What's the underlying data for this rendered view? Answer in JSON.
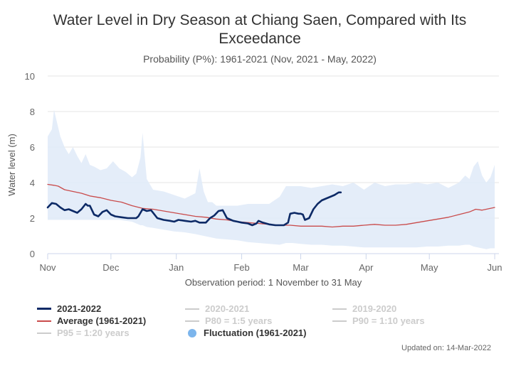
{
  "chart_data": {
    "type": "area",
    "title": "Water Level in Dry Season at Chiang Saen, Compared with Its Exceedance",
    "subtitle": "Probability (P%): 1961-2021 (Nov, 2021 - May, 2022)",
    "xlabel": "Observation period: 1 November to 31 May",
    "ylabel": "Water level (m)",
    "ylim": [
      0,
      10
    ],
    "yticks": [
      0,
      2,
      4,
      6,
      8,
      10
    ],
    "xlim": [
      0,
      213
    ],
    "xticks": [
      {
        "label": "Nov",
        "day": 0
      },
      {
        "label": "Dec",
        "day": 30
      },
      {
        "label": "Jan",
        "day": 61
      },
      {
        "label": "Feb",
        "day": 92
      },
      {
        "label": "Mar",
        "day": 120
      },
      {
        "label": "Apr",
        "day": 151
      },
      {
        "label": "May",
        "day": 181
      },
      {
        "label": "Jun",
        "day": 212
      }
    ],
    "grid": true,
    "legend_position": "bottom",
    "series": [
      {
        "name": "Fluctuation (1961-2021)",
        "kind": "band",
        "color": "#7cb5ec",
        "x": [
          0,
          2,
          3,
          4,
          6,
          8,
          10,
          12,
          14,
          16,
          18,
          20,
          22,
          25,
          28,
          31,
          34,
          37,
          40,
          42,
          44,
          45,
          47,
          50,
          55,
          60,
          65,
          70,
          72,
          74,
          76,
          78,
          80,
          85,
          90,
          95,
          100,
          105,
          110,
          113,
          116,
          120,
          125,
          130,
          135,
          140,
          145,
          150,
          155,
          160,
          165,
          170,
          175,
          180,
          185,
          190,
          195,
          198,
          200,
          202,
          204,
          206,
          208,
          210,
          212
        ],
        "high": [
          6.6,
          7.0,
          8.1,
          7.6,
          6.6,
          6.0,
          5.6,
          6.0,
          5.5,
          5.1,
          5.6,
          5.0,
          4.9,
          4.7,
          4.8,
          5.2,
          4.8,
          4.6,
          4.3,
          4.5,
          5.4,
          6.8,
          4.2,
          3.6,
          3.5,
          3.3,
          3.1,
          3.4,
          4.8,
          3.5,
          2.9,
          2.9,
          2.7,
          2.7,
          2.7,
          2.8,
          2.8,
          2.8,
          3.2,
          3.8,
          3.8,
          3.8,
          3.7,
          3.8,
          3.9,
          3.8,
          4.0,
          3.6,
          4.0,
          3.8,
          3.9,
          3.9,
          4.0,
          3.9,
          4.0,
          3.7,
          4.0,
          4.4,
          4.2,
          4.9,
          5.2,
          4.4,
          4.0,
          4.3,
          5.0
        ],
        "low": [
          1.9,
          1.9,
          1.9,
          1.9,
          1.9,
          1.9,
          1.9,
          1.9,
          1.9,
          1.9,
          1.9,
          1.9,
          1.9,
          1.9,
          1.9,
          1.9,
          1.9,
          1.85,
          1.8,
          1.7,
          1.6,
          1.6,
          1.5,
          1.45,
          1.35,
          1.25,
          1.2,
          1.1,
          1.05,
          1.0,
          0.95,
          0.9,
          0.85,
          0.8,
          0.75,
          0.65,
          0.6,
          0.55,
          0.5,
          0.6,
          0.6,
          0.55,
          0.5,
          0.5,
          0.45,
          0.45,
          0.4,
          0.35,
          0.35,
          0.35,
          0.35,
          0.35,
          0.35,
          0.4,
          0.4,
          0.45,
          0.45,
          0.5,
          0.5,
          0.4,
          0.35,
          0.3,
          0.25,
          0.3,
          0.3
        ]
      },
      {
        "name": "Average (1961-2021)",
        "kind": "line",
        "color": "#c94b4b",
        "x": [
          0,
          3,
          5,
          8,
          12,
          16,
          20,
          25,
          30,
          35,
          40,
          45,
          50,
          55,
          60,
          65,
          70,
          75,
          80,
          85,
          90,
          95,
          100,
          105,
          110,
          115,
          120,
          125,
          130,
          135,
          140,
          145,
          150,
          155,
          160,
          165,
          170,
          175,
          180,
          185,
          190,
          195,
          200,
          203,
          206,
          210,
          212
        ],
        "values": [
          3.9,
          3.85,
          3.8,
          3.6,
          3.5,
          3.4,
          3.25,
          3.15,
          3.0,
          2.9,
          2.7,
          2.55,
          2.5,
          2.4,
          2.3,
          2.2,
          2.1,
          2.05,
          1.95,
          1.9,
          1.8,
          1.75,
          1.7,
          1.65,
          1.6,
          1.6,
          1.55,
          1.55,
          1.55,
          1.5,
          1.55,
          1.55,
          1.6,
          1.65,
          1.6,
          1.6,
          1.65,
          1.75,
          1.85,
          1.95,
          2.05,
          2.2,
          2.35,
          2.5,
          2.45,
          2.55,
          2.6
        ]
      },
      {
        "name": "2021-2022",
        "kind": "line",
        "color": "#0d2a66",
        "x": [
          0,
          2,
          4,
          6,
          8,
          10,
          12,
          14,
          16,
          18,
          19,
          20,
          22,
          24,
          26,
          28,
          30,
          32,
          35,
          38,
          40,
          42,
          43,
          45,
          47,
          49,
          52,
          55,
          58,
          60,
          62,
          65,
          68,
          70,
          72,
          75,
          77,
          79,
          81,
          83,
          85,
          88,
          90,
          92,
          95,
          97,
          99,
          100,
          102,
          105,
          108,
          110,
          112,
          114,
          115,
          117,
          119,
          120,
          121,
          122,
          124,
          126,
          128,
          130,
          132,
          134,
          136,
          138,
          139
        ],
        "values": [
          2.6,
          2.85,
          2.8,
          2.6,
          2.45,
          2.5,
          2.4,
          2.3,
          2.5,
          2.8,
          2.7,
          2.7,
          2.2,
          2.1,
          2.35,
          2.45,
          2.2,
          2.1,
          2.05,
          2.0,
          2.0,
          2.0,
          2.1,
          2.5,
          2.4,
          2.45,
          2.0,
          1.9,
          1.85,
          1.8,
          1.9,
          1.85,
          1.8,
          1.85,
          1.75,
          1.75,
          2.0,
          2.15,
          2.4,
          2.45,
          2.0,
          1.85,
          1.8,
          1.75,
          1.7,
          1.6,
          1.7,
          1.85,
          1.75,
          1.65,
          1.6,
          1.6,
          1.6,
          1.75,
          2.25,
          2.3,
          2.25,
          2.25,
          2.2,
          1.9,
          2.0,
          2.5,
          2.8,
          3.0,
          3.1,
          3.2,
          3.3,
          3.45,
          3.45
        ]
      }
    ],
    "legend": [
      {
        "name": "2021-2022",
        "symbol": "line",
        "color": "#0d2a66",
        "active": true
      },
      {
        "name": "2020-2021",
        "symbol": "line",
        "color": "#cccccc",
        "active": false
      },
      {
        "name": "2019-2020",
        "symbol": "line",
        "color": "#cccccc",
        "active": false
      },
      {
        "name": "Average (1961-2021)",
        "symbol": "line",
        "color": "#c94b4b",
        "active": true
      },
      {
        "name": "P80 = 1:5 years",
        "symbol": "line",
        "color": "#cccccc",
        "active": false
      },
      {
        "name": "P90 = 1:10 years",
        "symbol": "line",
        "color": "#cccccc",
        "active": false
      },
      {
        "name": "P95 = 1:20 years",
        "symbol": "line",
        "color": "#cccccc",
        "active": false
      },
      {
        "name": "Fluctuation (1961-2021)",
        "symbol": "dot",
        "color": "#7cb5ec",
        "active": true
      }
    ],
    "credits": "Updated on: 14-Mar-2022"
  }
}
